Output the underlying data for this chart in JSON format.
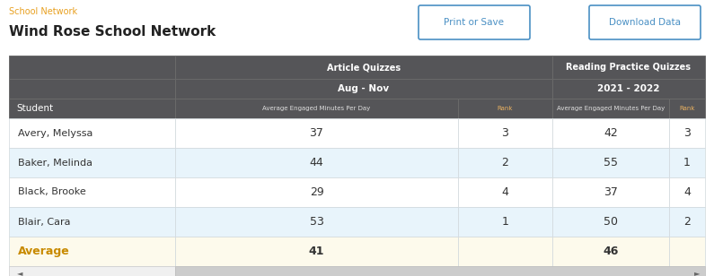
{
  "title_label": "School Network",
  "title_label_color": "#e8a020",
  "title": "Wind Rose School Network",
  "title_color": "#222222",
  "btn1": "Print or Save",
  "btn2": "Download Data",
  "btn_color": "#4a90c4",
  "header1_text": "Article Quizzes",
  "header2_text": "Reading Practice Quizzes",
  "subheader1_text": "Aug - Nov",
  "subheader2_text": "2021 - 2022",
  "col1_label": "Average Engaged Minutes Per Day",
  "col2_label": "Rank",
  "col3_label": "Average Engaged Minutes Per Day",
  "col4_label": "Rank",
  "student_col": "Student",
  "header_bg": "#555558",
  "header_text_color": "#ffffff",
  "row_bg_even": "#ffffff",
  "row_bg_odd": "#e8f4fb",
  "avg_row_bg": "#fdfaec",
  "avg_label_color": "#c88a00",
  "students": [
    "Avery, Melyssa",
    "Baker, Melinda",
    "Black, Brooke",
    "Blair, Cara"
  ],
  "art_values": [
    "37",
    "44",
    "29",
    "53"
  ],
  "art_ranks": [
    "3",
    "2",
    "4",
    "1"
  ],
  "read_values": [
    "42",
    "55",
    "37",
    "50"
  ],
  "read_ranks": [
    "3",
    "1",
    "4",
    "2"
  ],
  "avg_art": "41",
  "avg_read": "46",
  "fig_bg": "#ffffff",
  "data_text_color": "#333333",
  "scrollbar_bg": "#cccccc",
  "scrollbar_border": "#bbbbbb"
}
